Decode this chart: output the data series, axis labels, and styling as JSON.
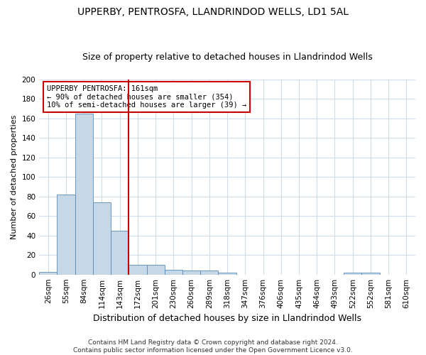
{
  "title1": "UPPERBY, PENTROSFA, LLANDRINDOD WELLS, LD1 5AL",
  "title2": "Size of property relative to detached houses in Llandrindod Wells",
  "xlabel": "Distribution of detached houses by size in Llandrindod Wells",
  "ylabel": "Number of detached properties",
  "footnote": "Contains HM Land Registry data © Crown copyright and database right 2024.\nContains public sector information licensed under the Open Government Licence v3.0.",
  "categories": [
    "26sqm",
    "55sqm",
    "84sqm",
    "114sqm",
    "143sqm",
    "172sqm",
    "201sqm",
    "230sqm",
    "260sqm",
    "289sqm",
    "318sqm",
    "347sqm",
    "376sqm",
    "406sqm",
    "435sqm",
    "464sqm",
    "493sqm",
    "522sqm",
    "552sqm",
    "581sqm",
    "610sqm"
  ],
  "values": [
    3,
    82,
    165,
    74,
    45,
    10,
    10,
    5,
    4,
    4,
    2,
    0,
    0,
    0,
    0,
    0,
    0,
    2,
    2,
    0,
    0
  ],
  "bar_color": "#c5d8e8",
  "bar_edge_color": "#5a8ab5",
  "red_line_x": 4.5,
  "red_line_color": "#cc0000",
  "annotation_text": "UPPERBY PENTROSFA: 161sqm\n← 90% of detached houses are smaller (354)\n10% of semi-detached houses are larger (39) →",
  "annotation_box_edge": "#cc0000",
  "ylim": [
    0,
    200
  ],
  "yticks": [
    0,
    20,
    40,
    60,
    80,
    100,
    120,
    140,
    160,
    180,
    200
  ],
  "bg_color": "#ffffff",
  "grid_color": "#d0dce8",
  "title1_fontsize": 10,
  "title2_fontsize": 9,
  "xlabel_fontsize": 9,
  "ylabel_fontsize": 8,
  "tick_fontsize": 7.5,
  "annotation_fontsize": 7.5,
  "footnote_fontsize": 6.5
}
